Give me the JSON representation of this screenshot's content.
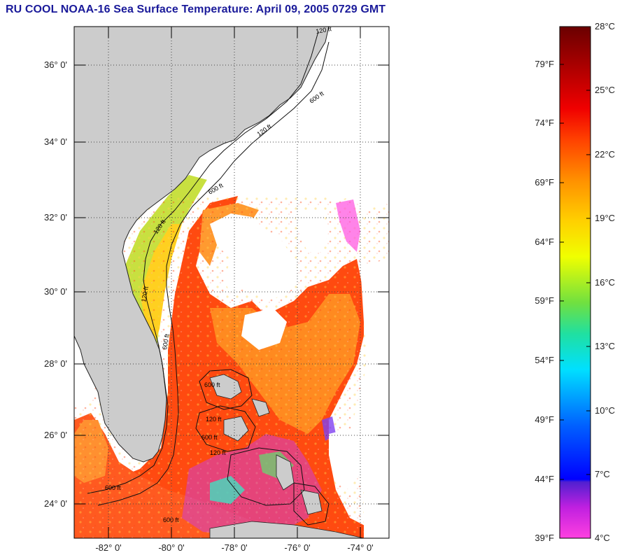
{
  "title": "RU COOL  NOAA-16  Sea Surface Temperature:  April 09, 2005 0729 GMT",
  "map": {
    "lat_labels": [
      "36° 0'",
      "34° 0'",
      "32° 0'",
      "30° 0'",
      "28° 0'",
      "26° 0'",
      "24° 0'"
    ],
    "lon_labels": [
      "-82° 0'",
      "-80° 0'",
      "-78° 0'",
      "-76° 0'",
      "-74° 0'"
    ],
    "isobath_labels": [
      "120 ft",
      "600 ft",
      "120 ft",
      "600 ft",
      "120 ft",
      "600 ft",
      "120 ft",
      "600 ft",
      "600 ft",
      "120 ft",
      "120 ft",
      "600 ft",
      "600 ft"
    ],
    "colors": {
      "land": "#cccccc",
      "cloud": "#ffffff",
      "grid": "#555555"
    }
  },
  "colorbar": {
    "fahrenheit_labels": [
      "79°F",
      "74°F",
      "69°F",
      "64°F",
      "59°F",
      "54°F",
      "49°F",
      "44°F",
      "39°F"
    ],
    "celsius_labels": [
      "28°C",
      "25°C",
      "22°C",
      "19°C",
      "16°C",
      "13°C",
      "10°C",
      "7°C",
      "4°C"
    ],
    "colors": [
      "#7a0000",
      "#e00000",
      "#ff2a00",
      "#ff7a00",
      "#ffaa00",
      "#ffe000",
      "#ffff00",
      "#c8f020",
      "#60e050",
      "#20e0c0",
      "#00e8ff",
      "#00a0ff",
      "#0050ff",
      "#0000ff",
      "#6a1ee0",
      "#c020e0",
      "#ff30e0"
    ]
  }
}
